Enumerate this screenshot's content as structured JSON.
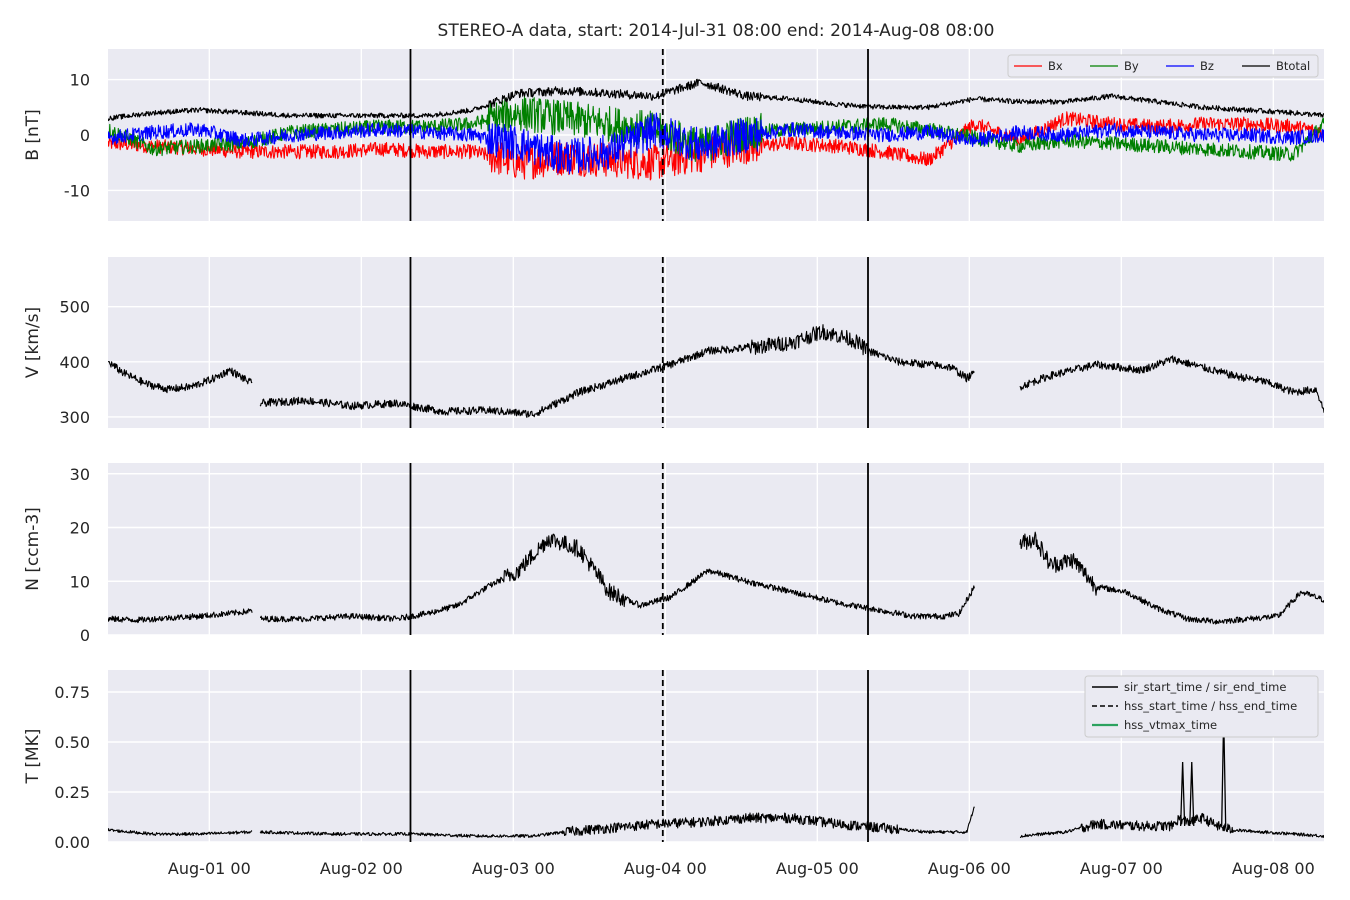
{
  "chart_data": [
    {
      "type": "line",
      "panel": "B",
      "title": "STEREO-A data, start: 2014-Jul-31 08:00  end: 2014-Aug-08 08:00",
      "ylabel": "B [nT]",
      "ylim": [
        -15.5,
        15.5
      ],
      "yticks": [
        -10,
        0,
        10
      ],
      "grid": true,
      "legend": "top-right",
      "series": [
        {
          "name": "Bx",
          "color": "#ff0000",
          "x": [
            0.0,
            0.3,
            0.6,
            0.9,
            1.2,
            1.5,
            1.8,
            2.1,
            2.4,
            2.7,
            3.0,
            3.3,
            3.6,
            3.9,
            4.2,
            4.5,
            4.8,
            5.1,
            5.4,
            5.7,
            6.0,
            6.3,
            6.6,
            6.9,
            7.2,
            7.5,
            7.8,
            8.0
          ],
          "y": [
            -1.5,
            -2.0,
            -2.5,
            -3.0,
            -3.0,
            -3.0,
            -2.5,
            -3.0,
            -3.0,
            -5.0,
            -4.0,
            -4.5,
            -5.0,
            -3.5,
            -2.0,
            -1.5,
            -2.0,
            -3.0,
            -4.5,
            2.0,
            -1.0,
            3.0,
            2.0,
            1.5,
            2.0,
            2.0,
            1.5,
            0.5
          ]
        },
        {
          "name": "By",
          "color": "#008000",
          "x": [
            0.0,
            0.3,
            0.6,
            0.9,
            1.2,
            1.5,
            1.8,
            2.1,
            2.4,
            2.7,
            3.0,
            3.3,
            3.6,
            3.9,
            4.2,
            4.5,
            4.8,
            5.1,
            5.4,
            5.7,
            6.0,
            6.3,
            6.6,
            6.9,
            7.2,
            7.5,
            7.8,
            8.0
          ],
          "y": [
            1.0,
            -2.5,
            -2.0,
            -1.5,
            0.5,
            1.0,
            1.5,
            1.5,
            2.0,
            4.0,
            3.0,
            2.0,
            1.0,
            -2.0,
            0.5,
            1.0,
            1.5,
            2.0,
            1.0,
            -0.5,
            -2.0,
            -1.0,
            -1.5,
            -2.0,
            -2.5,
            -3.0,
            -3.5,
            2.0
          ]
        },
        {
          "name": "Bz",
          "color": "#0000ff",
          "x": [
            0.0,
            0.3,
            0.6,
            0.9,
            1.2,
            1.5,
            1.8,
            2.1,
            2.4,
            2.7,
            3.0,
            3.3,
            3.6,
            3.9,
            4.2,
            4.5,
            4.8,
            5.1,
            5.4,
            5.7,
            6.0,
            6.3,
            6.6,
            6.9,
            7.2,
            7.5,
            7.8,
            8.0
          ],
          "y": [
            -0.5,
            0.5,
            1.0,
            -1.0,
            0.0,
            0.5,
            1.0,
            0.5,
            0.0,
            -1.5,
            -4.0,
            -3.0,
            1.0,
            -2.0,
            0.0,
            1.0,
            0.5,
            0.0,
            0.5,
            -1.0,
            0.5,
            0.0,
            1.0,
            0.5,
            0.0,
            0.0,
            -0.5,
            0.0
          ]
        },
        {
          "name": "Btotal",
          "color": "#000000",
          "x": [
            0.0,
            0.3,
            0.6,
            0.9,
            1.2,
            1.5,
            1.8,
            2.1,
            2.4,
            2.7,
            3.0,
            3.3,
            3.6,
            3.9,
            4.2,
            4.5,
            4.8,
            5.1,
            5.4,
            5.7,
            6.0,
            6.3,
            6.6,
            6.9,
            7.2,
            7.5,
            7.8,
            8.0
          ],
          "y": [
            3.0,
            4.0,
            4.5,
            4.0,
            3.5,
            3.5,
            3.5,
            3.5,
            4.5,
            7.5,
            8.0,
            7.5,
            7.0,
            9.5,
            7.0,
            6.5,
            5.5,
            5.0,
            5.0,
            6.5,
            6.0,
            6.0,
            7.0,
            6.0,
            5.0,
            4.5,
            4.0,
            3.5
          ]
        }
      ]
    },
    {
      "type": "line",
      "panel": "V",
      "ylabel": "V [km/s]",
      "ylim": [
        280,
        590
      ],
      "yticks": [
        300,
        400,
        500
      ],
      "grid": true,
      "series": [
        {
          "color": "#000000",
          "segments": [
            {
              "x": [
                0.0,
                0.1,
                0.25,
                0.4,
                0.55,
                0.7,
                0.8,
                0.95
              ],
              "y": [
                400,
                380,
                360,
                350,
                355,
                370,
                385,
                360
              ]
            },
            {
              "x": [
                1.0,
                1.3,
                1.6,
                1.9,
                2.2,
                2.5,
                2.8,
                3.1,
                3.4,
                3.7,
                3.95,
                4.2,
                4.5,
                4.7,
                4.9,
                5.0,
                5.2,
                5.4,
                5.55,
                5.65,
                5.7
              ],
              "y": [
                325,
                330,
                320,
                325,
                310,
                312,
                305,
                345,
                370,
                395,
                420,
                425,
                435,
                455,
                440,
                420,
                400,
                395,
                390,
                370,
                380
              ]
            },
            {
              "x": [
                6.0,
                6.2,
                6.5,
                6.8,
                7.0,
                7.2,
                7.4,
                7.6,
                7.8,
                7.95,
                8.0
              ],
              "y": [
                355,
                375,
                395,
                385,
                405,
                390,
                375,
                365,
                345,
                350,
                310
              ]
            }
          ]
        }
      ]
    },
    {
      "type": "line",
      "panel": "N",
      "ylabel": "N [ccm-3]",
      "ylim": [
        0,
        32
      ],
      "yticks": [
        0,
        10,
        20,
        30
      ],
      "grid": true,
      "series": [
        {
          "color": "#000000",
          "segments": [
            {
              "x": [
                0.0,
                0.2,
                0.4,
                0.6,
                0.8,
                0.95
              ],
              "y": [
                3.0,
                2.8,
                3.2,
                3.5,
                4.0,
                4.5
              ]
            },
            {
              "x": [
                1.0,
                1.3,
                1.6,
                1.9,
                2.1,
                2.3,
                2.5,
                2.7,
                2.9,
                3.1,
                3.3,
                3.5,
                3.7,
                3.95,
                4.2,
                4.5,
                4.8,
                5.1,
                5.3,
                5.5,
                5.6,
                5.7
              ],
              "y": [
                3.0,
                3.0,
                3.5,
                3.0,
                4.0,
                5.5,
                9.0,
                12.0,
                18.0,
                16.0,
                8.0,
                5.5,
                7.0,
                12.0,
                10.0,
                8.0,
                6.0,
                4.5,
                3.5,
                3.5,
                4.0,
                9.0
              ]
            },
            {
              "x": [
                6.0,
                6.1,
                6.2,
                6.35,
                6.5,
                6.7,
                6.9,
                7.1,
                7.3,
                7.5,
                7.7,
                7.85,
                8.0
              ],
              "y": [
                17.0,
                18.0,
                13.0,
                14.0,
                9.0,
                8.0,
                5.0,
                3.0,
                2.5,
                3.0,
                3.5,
                8.0,
                6.5
              ]
            }
          ]
        }
      ]
    },
    {
      "type": "line",
      "panel": "T",
      "ylabel": "T [MK]",
      "ylim": [
        0.0,
        0.86
      ],
      "yticks": [
        "0.00",
        "0.25",
        "0.50",
        "0.75"
      ],
      "grid": true,
      "legend": "top-right",
      "series": [
        {
          "color": "#000000",
          "segments": [
            {
              "x": [
                0.0,
                0.3,
                0.6,
                0.95
              ],
              "y": [
                0.06,
                0.04,
                0.04,
                0.05
              ]
            },
            {
              "x": [
                1.0,
                1.5,
                2.0,
                2.4,
                2.8,
                3.0,
                3.3,
                3.6,
                3.9,
                4.2,
                4.5,
                4.8,
                5.1,
                5.4,
                5.6,
                5.65,
                5.7
              ],
              "y": [
                0.05,
                0.04,
                0.04,
                0.03,
                0.03,
                0.05,
                0.07,
                0.09,
                0.1,
                0.12,
                0.12,
                0.09,
                0.07,
                0.05,
                0.05,
                0.05,
                0.18
              ]
            },
            {
              "x": [
                6.0,
                6.3,
                6.5,
                6.8,
                7.0,
                7.05,
                7.1,
                7.2,
                7.3,
                7.4,
                7.6,
                7.8,
                8.0
              ],
              "y": [
                0.03,
                0.05,
                0.09,
                0.08,
                0.08,
                0.12,
                0.1,
                0.12,
                0.08,
                0.06,
                0.05,
                0.04,
                0.03
              ]
            }
          ]
        }
      ],
      "spikes": [
        {
          "x": 7.07,
          "y": 0.4
        },
        {
          "x": 7.13,
          "y": 0.4
        },
        {
          "x": 7.34,
          "y": 0.63
        }
      ]
    }
  ],
  "time_axis": {
    "range_days": [
      0,
      8
    ],
    "start_note": "x in days after 2014-Jul-31 08:00",
    "ticks": [
      {
        "x": 0.6667,
        "label": "Aug-01 00"
      },
      {
        "x": 1.6667,
        "label": "Aug-02 00"
      },
      {
        "x": 2.6667,
        "label": "Aug-03 00"
      },
      {
        "x": 3.6667,
        "label": "Aug-04 00"
      },
      {
        "x": 4.6667,
        "label": "Aug-05 00"
      },
      {
        "x": 5.6667,
        "label": "Aug-06 00"
      },
      {
        "x": 6.6667,
        "label": "Aug-07 00"
      },
      {
        "x": 7.6667,
        "label": "Aug-08 00"
      }
    ]
  },
  "markers": {
    "sir_lines_x": [
      1.99,
      5.0
    ],
    "hss_lines_x": [
      3.65
    ]
  },
  "legend_b": [
    {
      "label": "Bx",
      "color": "#ff0000"
    },
    {
      "label": "By",
      "color": "#008000"
    },
    {
      "label": "Bz",
      "color": "#0000ff"
    },
    {
      "label": "Btotal",
      "color": "#000000"
    }
  ],
  "legend_t": [
    {
      "label": "sir_start_time / sir_end_time",
      "style": "solid",
      "color": "#000000"
    },
    {
      "label": "hss_start_time / hss_end_time",
      "style": "dashed",
      "color": "#000000"
    },
    {
      "label": "hss_vtmax_time",
      "style": "solid",
      "color": "#2ca25f"
    }
  ],
  "colors": {
    "plot_background": "#eaeaf2",
    "grid": "#ffffff"
  }
}
